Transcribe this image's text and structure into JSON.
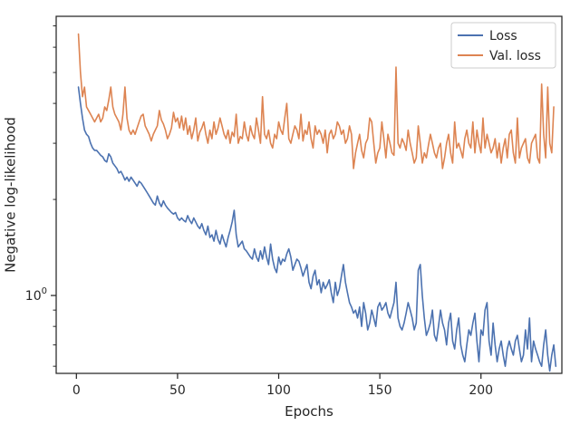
{
  "chart_data": {
    "type": "line",
    "xlabel": "Epochs",
    "ylabel": "Negative log-likelihood",
    "xlim": [
      -10,
      240
    ],
    "ylim": [
      0.57,
      7.5
    ],
    "yscale": "log",
    "xticks": [
      0,
      50,
      100,
      150,
      200
    ],
    "xtick_labels": [
      "0",
      "50",
      "100",
      "150",
      "200"
    ],
    "ytick_major": [
      {
        "value": 1,
        "base": "10",
        "exp": "0"
      }
    ],
    "ytick_minor": [
      0.6,
      0.7,
      0.8,
      0.9,
      2,
      3,
      4,
      5,
      6,
      7
    ],
    "grid": false,
    "legend_position": "top-right",
    "colors": {
      "loss": "#4c72b0",
      "val_loss": "#dd8452",
      "axes": "#262626"
    },
    "series": [
      {
        "name": "Loss",
        "x_start": 1,
        "values": [
          4.5,
          4.0,
          3.6,
          3.3,
          3.2,
          3.15,
          3.0,
          2.9,
          2.85,
          2.85,
          2.8,
          2.75,
          2.72,
          2.65,
          2.62,
          2.78,
          2.72,
          2.6,
          2.55,
          2.5,
          2.42,
          2.45,
          2.38,
          2.3,
          2.35,
          2.28,
          2.35,
          2.3,
          2.25,
          2.2,
          2.28,
          2.25,
          2.2,
          2.15,
          2.1,
          2.05,
          2.0,
          1.95,
          1.92,
          2.05,
          1.95,
          1.9,
          1.98,
          1.92,
          1.88,
          1.85,
          1.82,
          1.8,
          1.82,
          1.75,
          1.72,
          1.75,
          1.72,
          1.7,
          1.78,
          1.72,
          1.68,
          1.75,
          1.7,
          1.65,
          1.62,
          1.68,
          1.6,
          1.55,
          1.65,
          1.52,
          1.55,
          1.48,
          1.6,
          1.5,
          1.45,
          1.55,
          1.48,
          1.42,
          1.52,
          1.6,
          1.7,
          1.85,
          1.55,
          1.42,
          1.45,
          1.48,
          1.4,
          1.38,
          1.35,
          1.32,
          1.3,
          1.4,
          1.32,
          1.28,
          1.38,
          1.3,
          1.42,
          1.32,
          1.25,
          1.45,
          1.3,
          1.22,
          1.18,
          1.32,
          1.25,
          1.3,
          1.28,
          1.35,
          1.4,
          1.32,
          1.2,
          1.25,
          1.3,
          1.28,
          1.22,
          1.15,
          1.2,
          1.25,
          1.1,
          1.05,
          1.15,
          1.2,
          1.08,
          1.12,
          1.02,
          1.1,
          1.05,
          1.08,
          1.12,
          1.02,
          0.95,
          1.1,
          1.0,
          1.05,
          1.15,
          1.25,
          1.1,
          1.02,
          0.95,
          0.92,
          0.88,
          0.9,
          0.85,
          0.92,
          0.8,
          0.95,
          0.88,
          0.78,
          0.82,
          0.9,
          0.85,
          0.8,
          0.92,
          0.95,
          0.9,
          0.92,
          0.95,
          0.88,
          0.85,
          0.9,
          0.95,
          1.1,
          0.85,
          0.8,
          0.78,
          0.82,
          0.88,
          0.95,
          0.9,
          0.85,
          0.78,
          0.82,
          1.2,
          1.25,
          1.0,
          0.85,
          0.75,
          0.78,
          0.82,
          0.9,
          0.75,
          0.72,
          0.8,
          0.9,
          0.82,
          0.78,
          0.7,
          0.82,
          0.88,
          0.72,
          0.68,
          0.78,
          0.85,
          0.7,
          0.65,
          0.62,
          0.7,
          0.78,
          0.75,
          0.82,
          0.88,
          0.72,
          0.62,
          0.78,
          0.75,
          0.9,
          0.95,
          0.72,
          0.65,
          0.82,
          0.7,
          0.62,
          0.68,
          0.72,
          0.65,
          0.6,
          0.68,
          0.72,
          0.68,
          0.65,
          0.72,
          0.75,
          0.68,
          0.62,
          0.65,
          0.78,
          0.68,
          0.85,
          0.62,
          0.72,
          0.68,
          0.65,
          0.62,
          0.6,
          0.7,
          0.78,
          0.65,
          0.58,
          0.65,
          0.7,
          0.6
        ],
        "color": "#4c72b0"
      },
      {
        "name": "Val. loss",
        "x_start": 1,
        "values": [
          6.6,
          5.0,
          4.2,
          4.5,
          3.9,
          3.8,
          3.7,
          3.6,
          3.5,
          3.6,
          3.7,
          3.5,
          3.6,
          3.9,
          3.8,
          4.1,
          4.5,
          3.9,
          3.7,
          3.6,
          3.5,
          3.3,
          3.7,
          4.5,
          3.6,
          3.3,
          3.2,
          3.3,
          3.2,
          3.35,
          3.5,
          3.65,
          3.7,
          3.4,
          3.3,
          3.2,
          3.05,
          3.2,
          3.3,
          3.4,
          3.8,
          3.55,
          3.45,
          3.3,
          3.1,
          3.2,
          3.35,
          3.75,
          3.5,
          3.6,
          3.35,
          3.65,
          3.3,
          3.6,
          3.2,
          3.4,
          3.1,
          3.3,
          3.6,
          3.05,
          3.25,
          3.35,
          3.5,
          3.2,
          3.0,
          3.3,
          3.1,
          3.5,
          3.2,
          3.35,
          3.6,
          3.4,
          3.2,
          3.1,
          3.3,
          3.0,
          3.25,
          3.15,
          3.7,
          3.0,
          3.15,
          3.1,
          3.5,
          3.2,
          3.05,
          3.4,
          3.2,
          3.1,
          3.6,
          3.3,
          3.0,
          4.2,
          3.2,
          3.1,
          3.3,
          3.0,
          2.9,
          3.2,
          3.1,
          3.5,
          3.3,
          3.2,
          3.6,
          4.0,
          3.1,
          3.0,
          3.2,
          3.4,
          3.3,
          3.1,
          3.7,
          3.05,
          3.3,
          3.2,
          3.5,
          3.1,
          2.9,
          3.4,
          3.2,
          3.3,
          3.2,
          3.0,
          3.3,
          2.8,
          3.2,
          3.3,
          3.1,
          3.2,
          3.5,
          3.4,
          3.2,
          3.3,
          3.0,
          3.1,
          3.4,
          3.2,
          2.5,
          2.8,
          3.0,
          3.2,
          2.85,
          2.7,
          3.0,
          3.1,
          3.6,
          3.5,
          3.0,
          2.6,
          2.8,
          2.9,
          3.5,
          3.1,
          2.7,
          3.2,
          3.0,
          2.8,
          2.75,
          5.2,
          3.0,
          2.9,
          3.1,
          3.0,
          2.85,
          3.3,
          3.0,
          2.8,
          2.6,
          2.7,
          3.4,
          3.0,
          2.6,
          2.8,
          2.7,
          2.95,
          3.2,
          3.0,
          2.8,
          2.7,
          2.9,
          3.0,
          2.5,
          2.7,
          3.0,
          3.2,
          2.8,
          2.6,
          3.5,
          2.9,
          3.0,
          2.85,
          2.7,
          3.1,
          3.3,
          3.0,
          2.9,
          3.5,
          2.8,
          3.3,
          3.0,
          2.8,
          3.6,
          2.9,
          3.2,
          3.0,
          2.8,
          2.9,
          3.1,
          2.7,
          3.0,
          2.6,
          2.9,
          3.1,
          2.7,
          3.2,
          3.3,
          2.8,
          2.6,
          3.6,
          2.7,
          2.9,
          3.0,
          3.1,
          2.7,
          2.6,
          3.0,
          3.1,
          3.2,
          2.7,
          2.6,
          4.6,
          3.2,
          2.7,
          4.5,
          3.0,
          2.8,
          3.9
        ],
        "color": "#dd8452"
      }
    ]
  }
}
